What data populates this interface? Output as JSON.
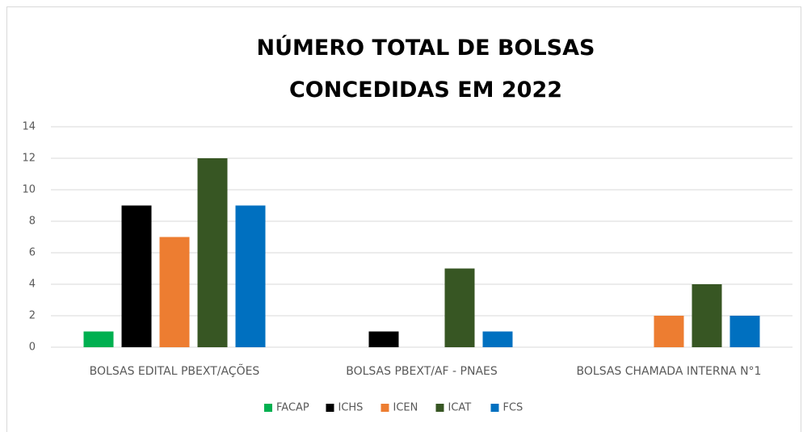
{
  "chart_data": {
    "type": "bar",
    "title": "NÚMERO TOTAL DE BOLSAS CONCEDIDAS EM 2022",
    "categories": [
      "BOLSAS EDITAL PBEXT/AÇÕES",
      "BOLSAS PBEXT/AF - PNAES",
      "BOLSAS CHAMADA INTERNA N°1"
    ],
    "series": [
      {
        "name": "FACAP",
        "color": "#00b050",
        "values": [
          1,
          0,
          0
        ]
      },
      {
        "name": "ICHS",
        "color": "#000000",
        "values": [
          9,
          1,
          0
        ]
      },
      {
        "name": "ICEN",
        "color": "#ed7d31",
        "values": [
          7,
          0,
          2
        ]
      },
      {
        "name": "ICAT",
        "color": "#375623",
        "values": [
          12,
          5,
          4
        ]
      },
      {
        "name": "FCS",
        "color": "#0070c0",
        "values": [
          9,
          1,
          2
        ]
      }
    ],
    "ylim": [
      0,
      14
    ],
    "yticks": [
      0,
      2,
      4,
      6,
      8,
      10,
      12,
      14
    ],
    "grid": true,
    "legend": "bottom"
  }
}
